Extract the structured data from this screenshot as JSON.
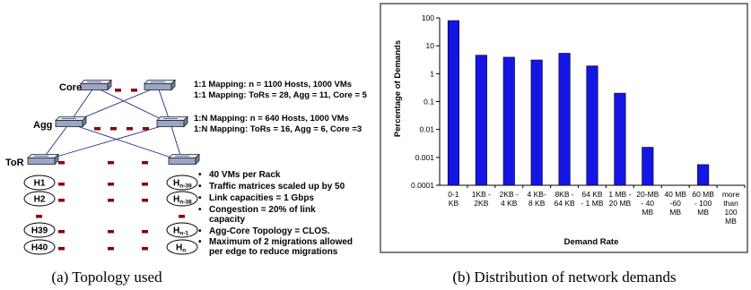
{
  "left_panel": {
    "caption": "(a) Topology used",
    "layer_labels": {
      "core": "Core",
      "agg": "Agg",
      "tor": "ToR"
    },
    "host_labels_left": [
      "H1",
      "H2",
      "H39",
      "H40"
    ],
    "host_labels_right": [
      {
        "main": "H",
        "sub": "n-39"
      },
      {
        "main": "H",
        "sub": "n-38"
      },
      {
        "main": "H",
        "sub": "n-1"
      },
      {
        "main": "H",
        "sub": "n"
      }
    ],
    "mapping_notes": [
      "1:1 Mapping:  n = 1100 Hosts, 1000 VMs",
      "1:1 Mapping: ToRs = 28, Agg = 11, Core = 5",
      "1:N Mapping: n = 640 Hosts, 1000 VMs",
      "1:N Mapping: ToRs = 16, Agg = 6, Core =3"
    ],
    "bullets": [
      [
        "40 VMs per Rack"
      ],
      [
        "Traffic matrices scaled up by 50"
      ],
      [
        "Link capacities = 1 Gbps"
      ],
      [
        "Congestion = 20% of link",
        "capacity"
      ],
      [
        "Agg-Core Topology = CLOS."
      ],
      [
        "Maximum of 2 migrations allowed",
        "per edge to reduce migrations"
      ]
    ],
    "colors": {
      "link": "#1f2a8c",
      "dash": "#8b0000"
    }
  },
  "right_panel": {
    "caption": "(b) Distribution of network demands"
  },
  "chart_data": {
    "type": "bar",
    "title": "",
    "xlabel": "Demand Rate",
    "ylabel": "Percentage of Demands",
    "yscale": "log",
    "ylim": [
      0.0001,
      100
    ],
    "yticks": [
      "0.0001",
      "0.001",
      "0.01",
      "0.1",
      "1",
      "10",
      "100"
    ],
    "categories": [
      [
        "0-1",
        "KB"
      ],
      [
        "1KB -",
        "2KB"
      ],
      [
        "2KB -",
        "4 KB"
      ],
      [
        "4 KB-",
        "8 KB"
      ],
      [
        "8KB -",
        "64 KB"
      ],
      [
        "64 KB",
        "- 1 MB"
      ],
      [
        "1 MB -",
        "20 MB"
      ],
      [
        "20-MB",
        "- 40",
        "MB"
      ],
      [
        "40 MB",
        "-60",
        "MB"
      ],
      [
        "60 MB",
        "- 100",
        "MB"
      ],
      [
        "more",
        "than",
        "100",
        "MB"
      ]
    ],
    "values": [
      80,
      4.6,
      3.9,
      3.1,
      5.4,
      1.9,
      0.2,
      0.0023,
      null,
      0.00055,
      null
    ],
    "bar_color": "#1515e6",
    "grid": false
  }
}
